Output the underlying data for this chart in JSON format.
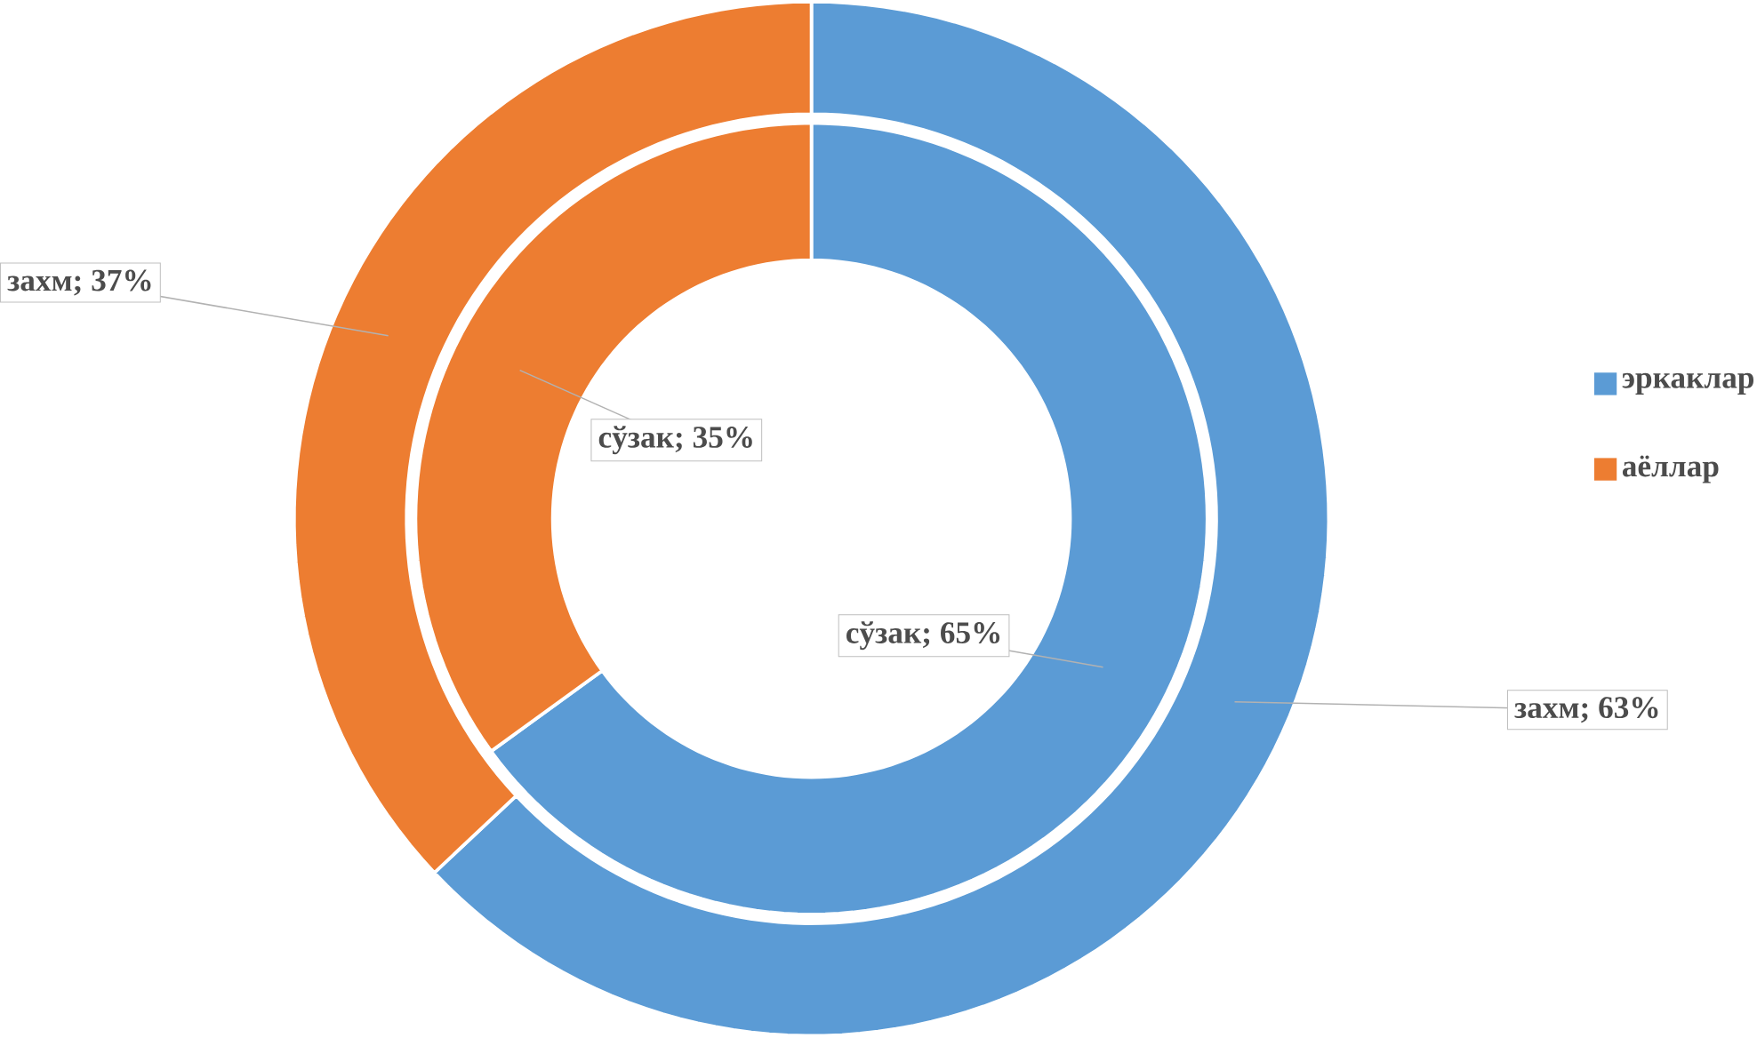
{
  "chart_data": {
    "type": "donut",
    "categories": [
      "эркаклар",
      "аёллар"
    ],
    "colors": [
      "#5b9bd5",
      "#ed7d31"
    ],
    "legend": "right",
    "series": [
      {
        "values": [
          63,
          37
        ],
        "value_labels": [
          "захм; 63%",
          "захм; 37%"
        ]
      },
      {
        "values": [
          65,
          35
        ],
        "value_labels": [
          "сўзак; 65%",
          "сўзак; 35%"
        ]
      }
    ]
  }
}
